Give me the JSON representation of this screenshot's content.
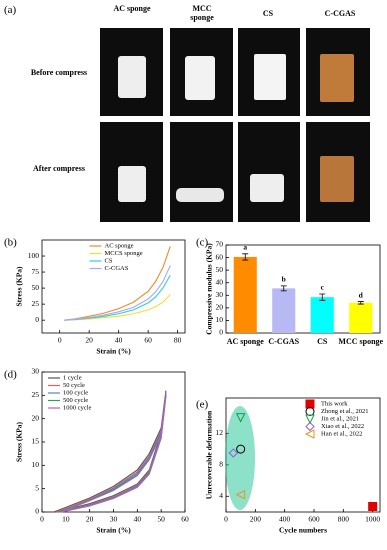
{
  "photo_panel": {
    "label": "(a)",
    "columns": [
      "AC sponge",
      "MCC sponge",
      "CS",
      "C-CGAS"
    ],
    "rows": [
      "Before compress",
      "After compress"
    ]
  },
  "chart_data": [
    {
      "type": "line",
      "panel": "(b)",
      "xlabel": "Strain (%)",
      "ylabel": "Stress (KPa)",
      "x": [
        3,
        10,
        20,
        30,
        40,
        50,
        60,
        65,
        70,
        75
      ],
      "series": [
        {
          "name": "AC sponge",
          "color": "#f08a2c",
          "values": [
            0,
            2,
            6,
            11,
            18,
            28,
            45,
            60,
            82,
            115
          ]
        },
        {
          "name": "MCCS sponge",
          "color": "#f2e030",
          "values": [
            0,
            0.5,
            2,
            4,
            6,
            10,
            16,
            21,
            28,
            40
          ]
        },
        {
          "name": "CS",
          "color": "#2ad0e0",
          "values": [
            0,
            1,
            3,
            6,
            10,
            16,
            27,
            36,
            50,
            70
          ]
        },
        {
          "name": "C-CGAS",
          "color": "#a9a9f0",
          "values": [
            0,
            1.5,
            4,
            8,
            13,
            20,
            33,
            44,
            60,
            85
          ]
        }
      ],
      "xlim": [
        -12,
        85
      ],
      "xticks": [
        0,
        20,
        40,
        60,
        80
      ],
      "ylim": [
        -20,
        125
      ],
      "yticks": [
        0,
        25,
        50,
        75,
        100
      ],
      "legend": "upper center"
    },
    {
      "type": "bar",
      "panel": "(c)",
      "ylabel": "Compressive modulus (KPa)",
      "categories": [
        "AC sponge",
        "C-CGAS",
        "CS",
        "MCC sponge"
      ],
      "values": [
        60.5,
        35.5,
        28.5,
        24
      ],
      "errors": [
        2.5,
        2,
        2.5,
        1
      ],
      "colors": [
        "#ff8c00",
        "#b8b8f5",
        "#00ffff",
        "#ffff00"
      ],
      "annotations": [
        "a",
        "b",
        "c",
        "d"
      ],
      "ylim": [
        0,
        70
      ],
      "yticks": [
        0,
        10,
        20,
        30,
        40,
        50,
        60,
        70
      ]
    },
    {
      "type": "line",
      "panel": "(d)",
      "xlabel": "Strain (%)",
      "ylabel": "Stress (KPa)",
      "series": [
        {
          "name": "1 cycle",
          "color": "#555555",
          "x": [
            5,
            10,
            20,
            30,
            40,
            45,
            50,
            52,
            50,
            45,
            40,
            30,
            20,
            10,
            5
          ],
          "values": [
            0,
            1,
            3,
            5.5,
            9,
            12.5,
            18,
            26,
            17,
            9,
            6,
            3.5,
            1.8,
            0.5,
            0
          ]
        },
        {
          "name": "50 cycle",
          "color": "#e06060",
          "x": [
            6,
            10,
            20,
            30,
            40,
            45,
            50,
            52,
            50,
            45,
            40,
            30,
            20,
            10,
            6
          ],
          "values": [
            0,
            0.8,
            2.8,
            5.2,
            8.6,
            12,
            17.5,
            25.5,
            16.5,
            8.7,
            5.8,
            3.3,
            1.6,
            0.4,
            0
          ]
        },
        {
          "name": "100 cycle",
          "color": "#5080e0",
          "x": [
            7,
            10,
            20,
            30,
            40,
            45,
            50,
            52,
            50,
            45,
            40,
            30,
            20,
            10,
            7
          ],
          "values": [
            0,
            0.6,
            2.6,
            5,
            8.3,
            11.7,
            17.2,
            25.3,
            16.2,
            8.5,
            5.6,
            3.1,
            1.5,
            0.3,
            0
          ]
        },
        {
          "name": "500 cycle",
          "color": "#30a050",
          "x": [
            7,
            10,
            20,
            30,
            40,
            45,
            50,
            52,
            50,
            45,
            40,
            30,
            20,
            10,
            7
          ],
          "values": [
            0,
            0.5,
            2.5,
            4.8,
            8,
            11.4,
            16.9,
            25,
            16,
            8.3,
            5.4,
            3,
            1.4,
            0.3,
            0
          ]
        },
        {
          "name": "1000 cycle",
          "color": "#b060c0",
          "x": [
            8,
            10,
            20,
            30,
            40,
            45,
            50,
            52,
            50,
            45,
            40,
            30,
            20,
            10,
            8
          ],
          "values": [
            0,
            0.4,
            2.4,
            4.6,
            7.8,
            11.2,
            16.6,
            24.8,
            15.8,
            8.1,
            5.3,
            2.9,
            1.3,
            0.2,
            0
          ]
        }
      ],
      "xlim": [
        0,
        60
      ],
      "xticks": [
        0,
        10,
        20,
        30,
        40,
        50,
        60
      ],
      "ylim": [
        0,
        30
      ],
      "yticks": [
        0,
        5,
        10,
        15,
        20,
        25,
        30
      ],
      "legend": "upper left"
    },
    {
      "type": "scatter",
      "panel": "(e)",
      "xlabel": "Cycle numbers",
      "ylabel": "Unrecoverable deformation",
      "series": [
        {
          "name": "This work",
          "color": "#e00000",
          "marker": "square",
          "x": [
            1000
          ],
          "values": [
            2.7
          ]
        },
        {
          "name": "Zhong et al., 2021",
          "color": "#000000",
          "marker": "circle",
          "x": [
            100
          ],
          "values": [
            10
          ]
        },
        {
          "name": "Jin et al., 2021",
          "color": "#10a040",
          "marker": "triangle-down",
          "x": [
            100
          ],
          "values": [
            14
          ]
        },
        {
          "name": "Xiao et al., 2022",
          "color": "#9060d0",
          "marker": "diamond",
          "x": [
            50
          ],
          "values": [
            9.5
          ]
        },
        {
          "name": "Han et al., 2022",
          "color": "#f09020",
          "marker": "triangle-left",
          "x": [
            100
          ],
          "values": [
            4.2
          ]
        }
      ],
      "xlim": [
        0,
        1050
      ],
      "xticks": [
        0,
        200,
        400,
        600,
        800,
        1000
      ],
      "ylim": [
        2,
        16.5
      ],
      "yticks": [
        4,
        8,
        12
      ],
      "legend": "upper right"
    }
  ]
}
